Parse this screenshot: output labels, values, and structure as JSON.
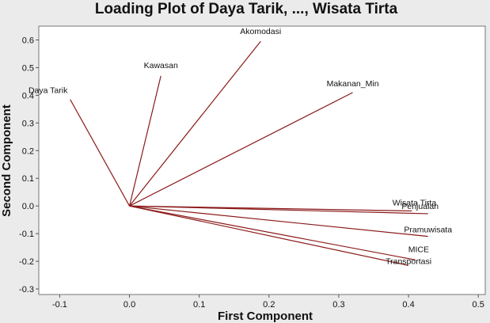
{
  "chart_data": {
    "type": "loading-plot",
    "title": "Loading Plot of Daya Tarik, ..., Wisata Tirta",
    "xlabel": "First Component",
    "ylabel": "Second Component",
    "xlim": [
      -0.13,
      0.51
    ],
    "ylim": [
      -0.32,
      0.65
    ],
    "x_ticks": [
      -0.1,
      0.0,
      0.1,
      0.2,
      0.3,
      0.4,
      0.5
    ],
    "x_tick_labels": [
      "-0.1",
      "0.0",
      "0.1",
      "0.2",
      "0.3",
      "0.4",
      "0.5"
    ],
    "y_ticks": [
      -0.3,
      -0.2,
      -0.1,
      0.0,
      0.1,
      0.2,
      0.3,
      0.4,
      0.5,
      0.6
    ],
    "y_tick_labels": [
      "-0.3",
      "-0.2",
      "-0.1",
      "0.0",
      "0.1",
      "0.2",
      "0.3",
      "0.4",
      "0.5",
      "0.6"
    ],
    "grid": false,
    "vector_color": "#8b1a1a",
    "vectors": [
      {
        "label": "Daya Tarik",
        "x": -0.085,
        "y": 0.385
      },
      {
        "label": "Kawasan",
        "x": 0.045,
        "y": 0.47
      },
      {
        "label": "Akomodasi",
        "x": 0.188,
        "y": 0.595
      },
      {
        "label": "Makanan_Min",
        "x": 0.32,
        "y": 0.41
      },
      {
        "label": "Wisata Tirta",
        "x": 0.405,
        "y": -0.018
      },
      {
        "label": "Penjualan",
        "x": 0.428,
        "y": -0.028
      },
      {
        "label": "Pramuwisata",
        "x": 0.428,
        "y": -0.11
      },
      {
        "label": "MICE",
        "x": 0.41,
        "y": -0.195
      },
      {
        "label": "Transportasi",
        "x": 0.4,
        "y": -0.215
      }
    ]
  }
}
